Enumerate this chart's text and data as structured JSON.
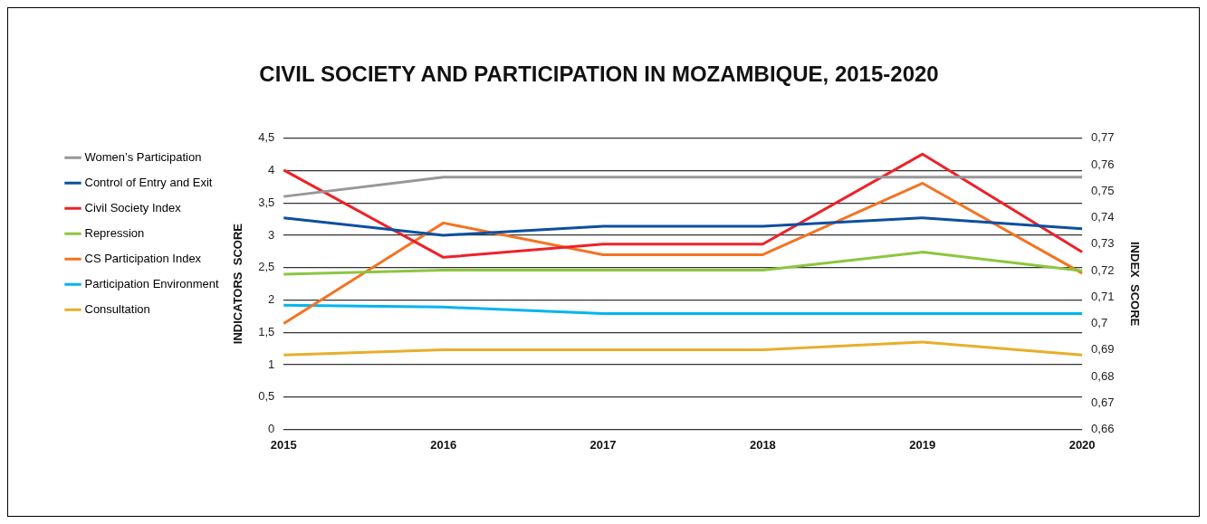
{
  "chart_data": {
    "type": "line",
    "title": "CIVIL SOCIETY AND PARTICIPATION IN MOZAMBIQUE, 2015-2020",
    "ylabel": "INDICATORS  SCORE",
    "y2label": "INDEX  SCORE",
    "categories": [
      "2015",
      "2016",
      "2017",
      "2018",
      "2019",
      "2020"
    ],
    "series": [
      {
        "name": "Women’s Participation",
        "color": "#97979a",
        "values": [
          3.6,
          3.9,
          3.9,
          3.9,
          3.9,
          3.9
        ]
      },
      {
        "name": "Control of Entry and Exit",
        "color": "#0d4fa0",
        "values": [
          3.27,
          3.0,
          3.14,
          3.14,
          3.27,
          3.1
        ]
      },
      {
        "name": "Civil Society Index",
        "color": "#ee2129",
        "axis": "y2",
        "values": [
          0.758,
          0.725,
          0.73,
          0.73,
          0.764,
          0.727
        ]
      },
      {
        "name": "Repression",
        "color": "#8cc63f",
        "values": [
          2.4,
          2.46,
          2.46,
          2.46,
          2.74,
          2.45
        ]
      },
      {
        "name": "CS Participation Index",
        "color": "#f47321",
        "axis": "y2",
        "values": [
          0.7,
          0.738,
          0.726,
          0.726,
          0.753,
          0.719
        ]
      },
      {
        "name": "Participation Environment",
        "color": "#00b5ef",
        "values": [
          1.92,
          1.89,
          1.79,
          1.79,
          1.79,
          1.79
        ]
      },
      {
        "name": "Consultation",
        "color": "#e8ae2b",
        "values": [
          1.15,
          1.23,
          1.23,
          1.23,
          1.35,
          1.15
        ]
      }
    ],
    "ylim": [
      0,
      4.5
    ],
    "yticks": [
      0,
      {
        "value": 0.5,
        "label": "0,5"
      },
      1,
      {
        "value": 1.5,
        "label": "1,5"
      },
      2,
      {
        "value": 2.5,
        "label": "2,5"
      },
      3,
      {
        "value": 3.5,
        "label": "3,5"
      },
      4,
      {
        "value": 4.5,
        "label": "4,5"
      }
    ],
    "y2lim": [
      0.66,
      0.77
    ],
    "y2ticks": [
      {
        "value": 0.66,
        "label": "0,66"
      },
      {
        "value": 0.67,
        "label": "0,67"
      },
      {
        "value": 0.68,
        "label": "0,68"
      },
      {
        "value": 0.69,
        "label": "0,69"
      },
      {
        "value": 0.7,
        "label": "0,7"
      },
      {
        "value": 0.71,
        "label": "0,71"
      },
      {
        "value": 0.72,
        "label": "0,72"
      },
      {
        "value": 0.73,
        "label": "0,73"
      },
      {
        "value": 0.74,
        "label": "0,74"
      },
      {
        "value": 0.75,
        "label": "0,75"
      },
      {
        "value": 0.76,
        "label": "0,76"
      },
      {
        "value": 0.77,
        "label": "0,77"
      }
    ],
    "grid": "y",
    "legend": "left",
    "marker": "none",
    "line_style": "solid"
  }
}
